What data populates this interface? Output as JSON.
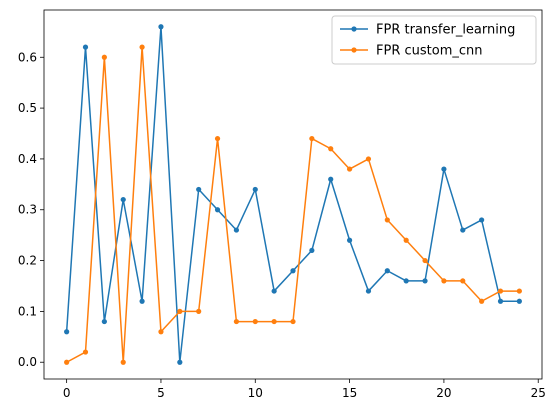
{
  "chart_data": {
    "type": "line",
    "title": "",
    "xlabel": "",
    "ylabel": "",
    "xlim": [
      -1.2,
      25.2
    ],
    "ylim": [
      -0.033,
      0.693
    ],
    "x_ticks": [
      0,
      5,
      10,
      15,
      20,
      25
    ],
    "y_ticks": [
      0.0,
      0.1,
      0.2,
      0.3,
      0.4,
      0.5,
      0.6
    ],
    "x_tick_labels": [
      "0",
      "5",
      "10",
      "15",
      "20",
      "25"
    ],
    "y_tick_labels": [
      "0.0",
      "0.1",
      "0.2",
      "0.3",
      "0.4",
      "0.5",
      "0.6"
    ],
    "grid": false,
    "legend_position": "top-right",
    "x": [
      0,
      1,
      2,
      3,
      4,
      5,
      6,
      7,
      8,
      9,
      10,
      11,
      12,
      13,
      14,
      15,
      16,
      17,
      18,
      19,
      20,
      21,
      22,
      23,
      24
    ],
    "series": [
      {
        "name": "FPR transfer_learning",
        "color": "#1f77b4",
        "marker": "circle",
        "values": [
          0.06,
          0.62,
          0.08,
          0.32,
          0.12,
          0.66,
          0.0,
          0.34,
          0.3,
          0.26,
          0.34,
          0.14,
          0.18,
          0.22,
          0.36,
          0.24,
          0.14,
          0.18,
          0.16,
          0.16,
          0.38,
          0.26,
          0.28,
          0.12,
          0.12
        ]
      },
      {
        "name": "FPR custom_cnn",
        "color": "#ff7f0e",
        "marker": "circle",
        "values": [
          0.0,
          0.02,
          0.6,
          0.0,
          0.62,
          0.06,
          0.1,
          0.1,
          0.44,
          0.08,
          0.08,
          0.08,
          0.08,
          0.44,
          0.42,
          0.38,
          0.4,
          0.28,
          0.24,
          0.2,
          0.16,
          0.16,
          0.12,
          0.14,
          0.14
        ]
      }
    ]
  }
}
